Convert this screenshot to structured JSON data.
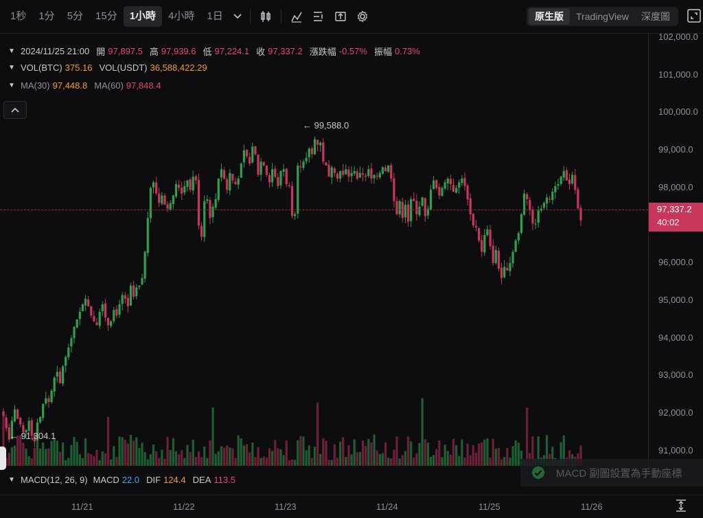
{
  "toolbar": {
    "timeframes": [
      "1秒",
      "1分",
      "5分",
      "15分",
      "1小時",
      "4小時",
      "1日"
    ],
    "active_timeframe": "1小時",
    "view_tabs": [
      "原生版",
      "TradingView",
      "深度圖"
    ],
    "active_view": "原生版"
  },
  "ohlc": {
    "datetime": "2024/11/25 21:00",
    "open_label": "開",
    "open": "97,897.5",
    "high_label": "高",
    "high": "97,939.6",
    "low_label": "低",
    "low": "97,224.1",
    "close_label": "收",
    "close": "97,337.2",
    "change_label": "漲跌幅",
    "change": "-0.57%",
    "amplitude_label": "振幅",
    "amplitude": "0.73%"
  },
  "volume": {
    "btc_label": "VOL(BTC)",
    "btc": "375.16",
    "usdt_label": "VOL(USDT)",
    "usdt": "36,588,422.29"
  },
  "ma": {
    "ma30_label": "MA(30)",
    "ma30": "97,448.8",
    "ma60_label": "MA(60)",
    "ma60": "97,848.4"
  },
  "macd": {
    "label": "MACD(12, 26, 9)",
    "macd_label": "MACD",
    "macd": "22.0",
    "dif_label": "DIF",
    "dif": "124.4",
    "dea_label": "DEA",
    "dea": "113.5"
  },
  "y_axis": [
    "102,000.0",
    "101,000.0",
    "100,000.0",
    "99,000.0",
    "98,000.0",
    "97,000.0",
    "96,000.0",
    "95,000.0",
    "94,000.0",
    "93,000.0",
    "92,000.0",
    "91,000.0"
  ],
  "x_axis": [
    "11/21",
    "11/22",
    "11/23",
    "11/24",
    "11/25",
    "11/26"
  ],
  "current_price": {
    "price": "97,337.2",
    "countdown": "40:02"
  },
  "annotations": {
    "high": "← 99,588.0",
    "low": "← 91,304.1"
  },
  "toast": "MACD 副圖設置為手動座標",
  "colors": {
    "up": "#2ea04f",
    "down": "#c9365c",
    "bg": "#0d0d0f"
  },
  "chart_data": {
    "type": "candlestick",
    "ylim": [
      90800,
      102200
    ],
    "closes": [
      92100,
      91800,
      91500,
      92000,
      92300,
      92050,
      91900,
      91700,
      91750,
      92000,
      91600,
      91450,
      91950,
      92100,
      92450,
      92600,
      92500,
      92800,
      93150,
      93300,
      93000,
      93450,
      93700,
      93950,
      94200,
      94500,
      94700,
      94900,
      95100,
      95250,
      95050,
      94800,
      94650,
      94550,
      94900,
      95100,
      94750,
      94550,
      94650,
      94950,
      94800,
      95100,
      95350,
      95250,
      95050,
      95600,
      95300,
      95550,
      95600,
      95800,
      96500,
      97400,
      98200,
      98350,
      98050,
      97800,
      98000,
      97750,
      97650,
      97800,
      98000,
      98300,
      98200,
      98050,
      98250,
      98400,
      98150,
      98500,
      98400,
      97200,
      96900,
      97850,
      97900,
      97400,
      97700,
      97900,
      98450,
      98700,
      98450,
      98150,
      98600,
      98400,
      98300,
      98450,
      98850,
      99200,
      99050,
      98850,
      99300,
      99100,
      98550,
      98900,
      98800,
      98550,
      98350,
      98700,
      98500,
      98250,
      98650,
      98700,
      98300,
      98250,
      97450,
      97500,
      98800,
      98750,
      98900,
      99000,
      99250,
      99100,
      99500,
      99350,
      99400,
      98900,
      98800,
      98500,
      98750,
      98600,
      98450,
      98650,
      98550,
      98700,
      98500,
      98600,
      98650,
      98450,
      98600,
      98550,
      98500,
      98700,
      98450,
      98550,
      98500,
      98600,
      98750,
      98650,
      98800,
      98450,
      97850,
      97500,
      97850,
      97400,
      97750,
      97300,
      97900,
      97850,
      97500,
      97700,
      97950,
      97450,
      97650,
      98150,
      98400,
      98200,
      98000,
      98200,
      98350,
      98450,
      98300,
      98100,
      98200,
      98350,
      98450,
      98250,
      97900,
      97500,
      97200,
      97150,
      96800,
      96500,
      96950,
      97100,
      96650,
      96200,
      96550,
      96050,
      95800,
      96100,
      96000,
      96200,
      96500,
      96800,
      97000,
      97500,
      98050,
      97900,
      97600,
      97250,
      97250,
      97600,
      97650,
      97800,
      97950,
      97900,
      98100,
      98250,
      98300,
      98500,
      98650,
      98400,
      98300,
      98550,
      98150,
      97650,
      97337
    ]
  }
}
